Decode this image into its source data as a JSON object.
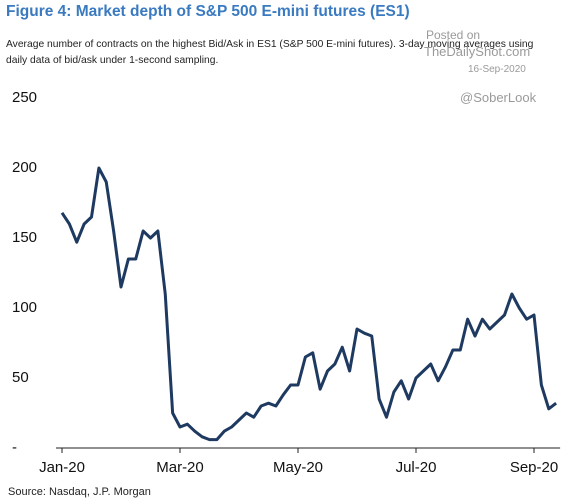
{
  "chart_data": {
    "type": "line",
    "title": "Figure 4: Market depth of S&P 500 E-mini futures (ES1)",
    "subtitle": "Average number of contracts on the highest Bid/Ask in ES1 (S&P 500 E-mini futures). 3-day moving averages using daily data of bid/ask under 1-second sampling.",
    "source": "Source: Nasdaq, J.P. Morgan",
    "watermark": [
      "Posted on",
      "TheDailyShot.com",
      "16-Sep-2020",
      "@SoberLook"
    ],
    "categories": [
      "Jan-20",
      null,
      null,
      null,
      null,
      null,
      null,
      null,
      null,
      null,
      null,
      null,
      null,
      null,
      null,
      null,
      "Mar-20",
      null,
      null,
      null,
      null,
      null,
      null,
      null,
      null,
      null,
      null,
      null,
      null,
      null,
      null,
      null,
      "May-20",
      null,
      null,
      null,
      null,
      null,
      null,
      null,
      null,
      null,
      null,
      null,
      null,
      null,
      null,
      null,
      "Jul-20",
      null,
      null,
      null,
      null,
      null,
      null,
      null,
      null,
      null,
      null,
      null,
      null,
      null,
      null,
      null,
      "Sep-20",
      null,
      null,
      null
    ],
    "series": [
      {
        "color": "#1f3a60",
        "values": [
          168,
          160,
          147,
          160,
          165,
          200,
          190,
          155,
          115,
          135,
          135,
          155,
          150,
          155,
          110,
          25,
          15,
          17,
          12,
          8,
          6,
          6,
          12,
          15,
          20,
          25,
          22,
          30,
          32,
          30,
          38,
          45,
          45,
          65,
          68,
          42,
          55,
          60,
          72,
          55,
          85,
          82,
          80,
          35,
          22,
          40,
          48,
          35,
          50,
          55,
          60,
          48,
          58,
          70,
          70,
          92,
          80,
          92,
          85,
          90,
          95,
          110,
          100,
          92,
          95,
          45,
          28,
          32
        ]
      }
    ],
    "ylim": [
      0,
      250
    ],
    "yticks": [
      {
        "value": 0,
        "label": "-"
      },
      50,
      100,
      150,
      200,
      250
    ]
  }
}
